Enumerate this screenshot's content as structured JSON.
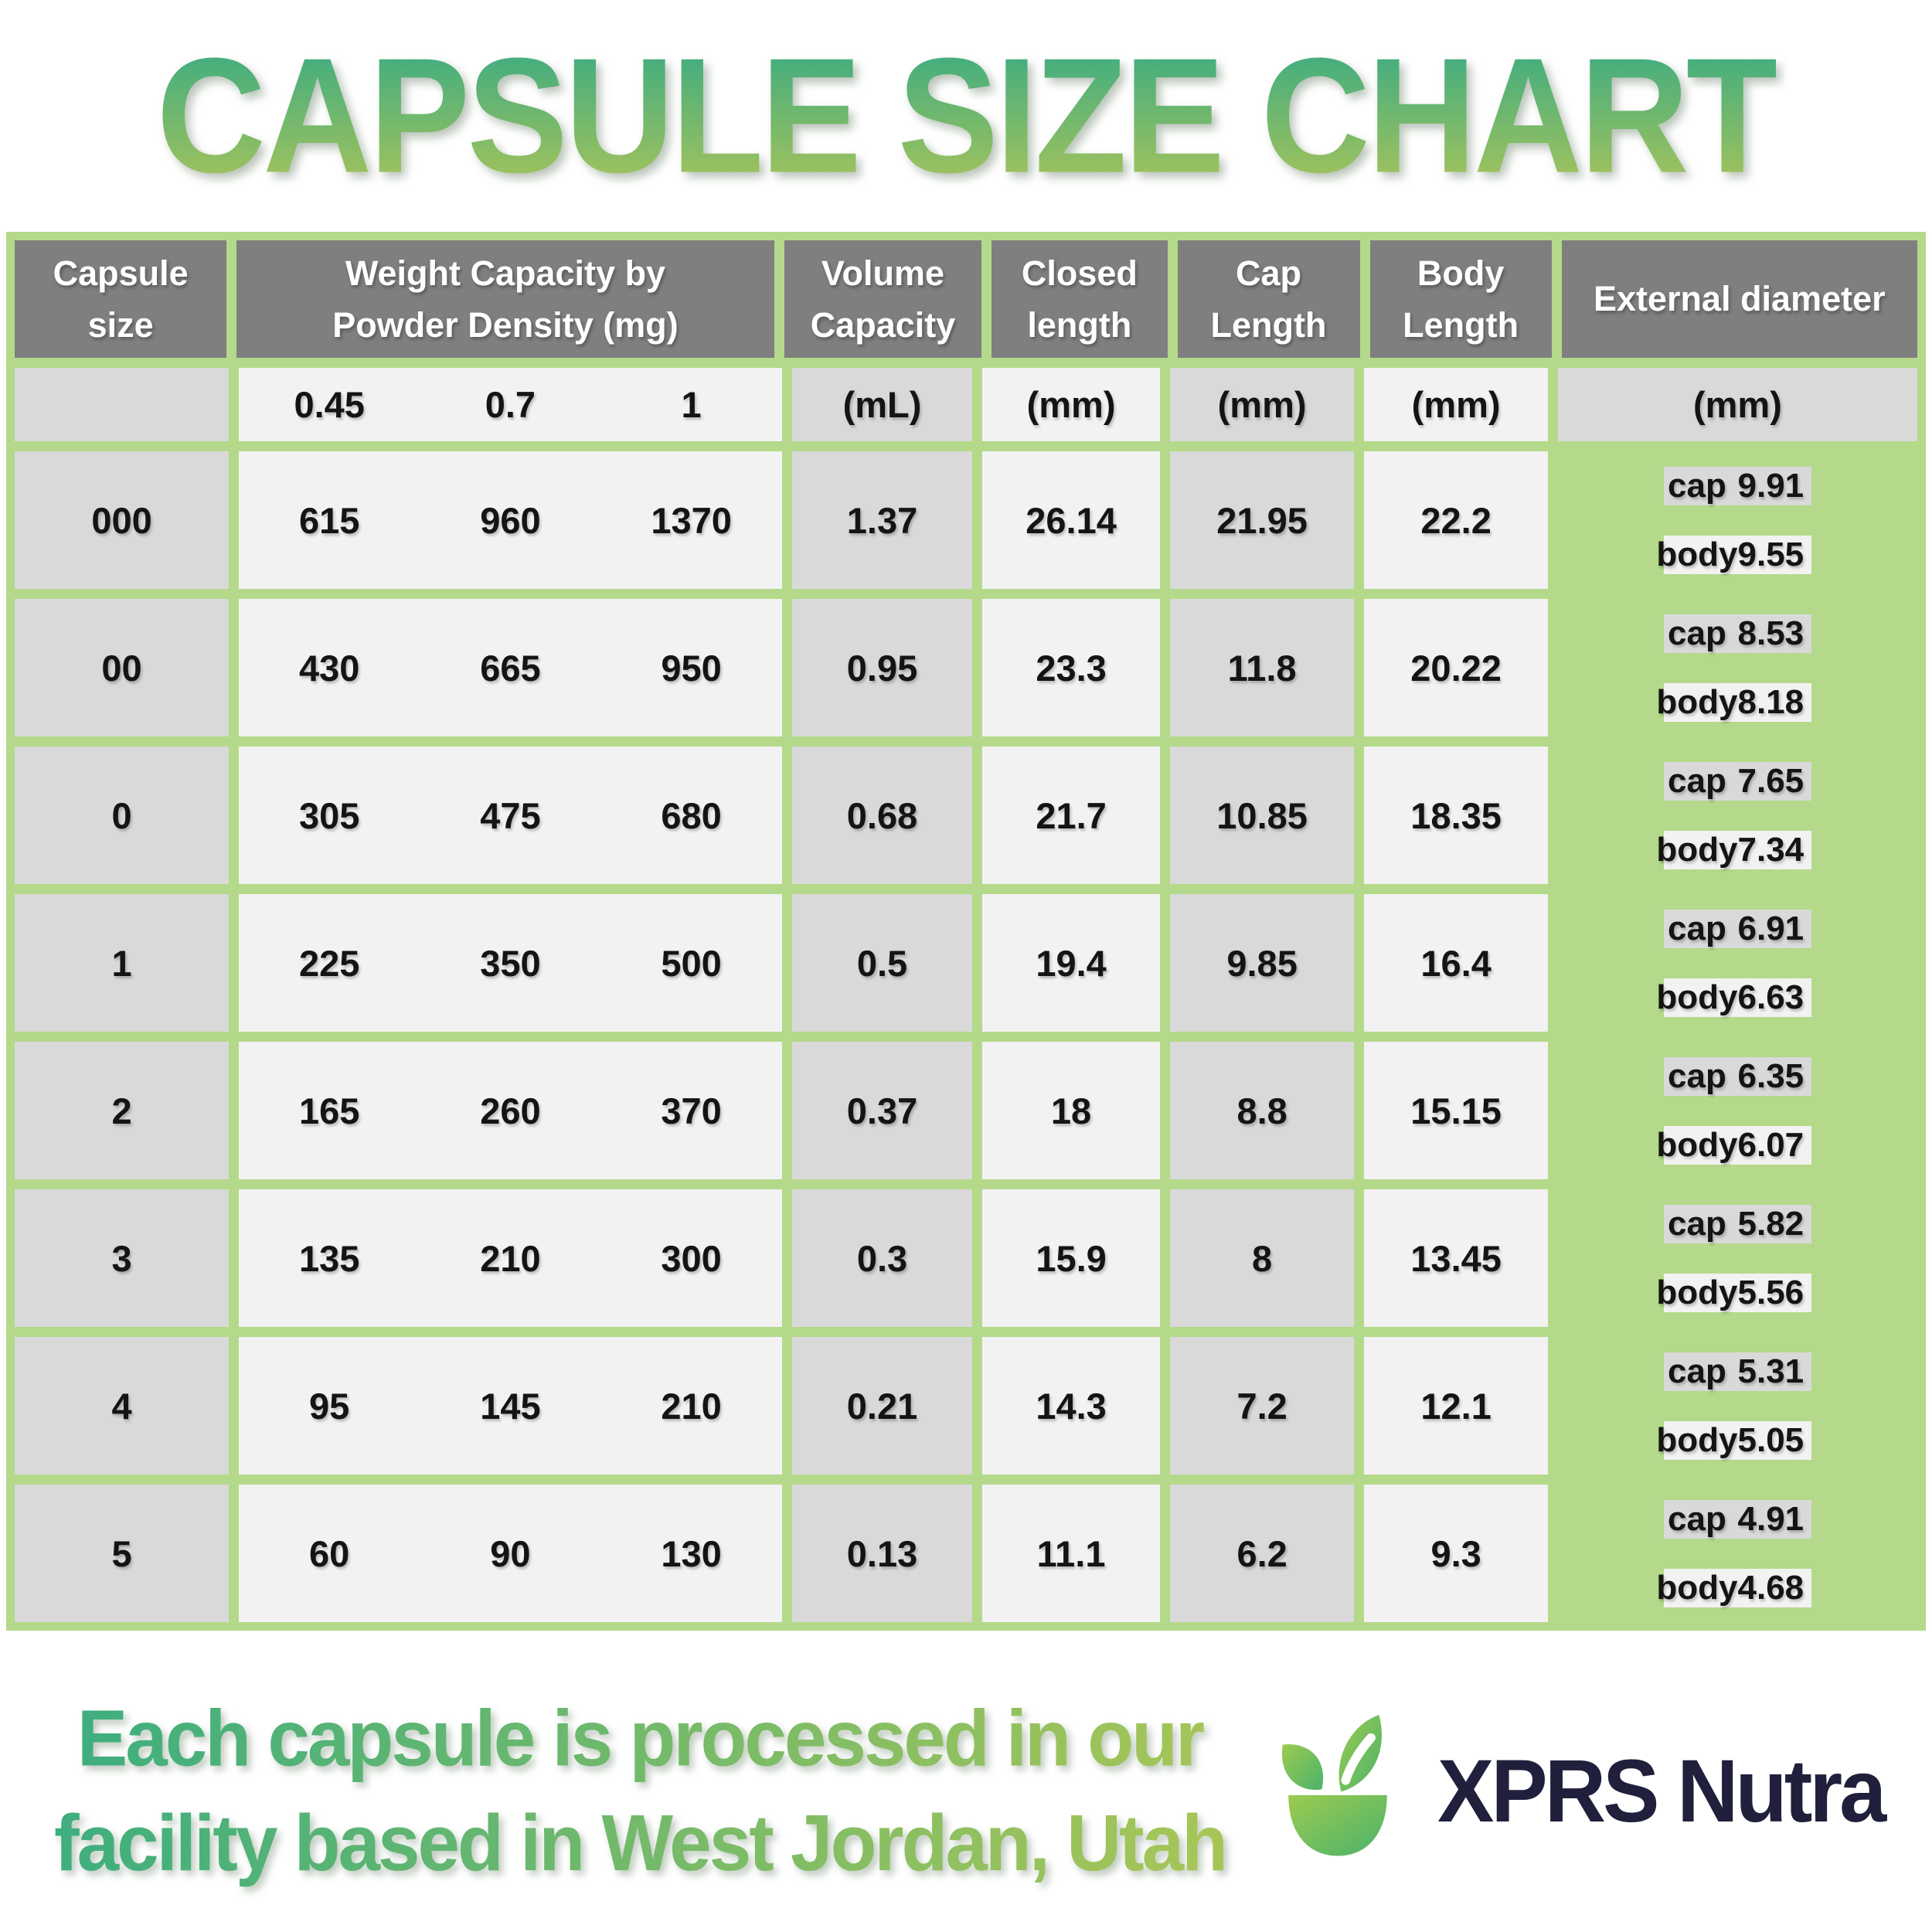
{
  "title": "CAPSULE SIZE CHART",
  "table": {
    "headers": {
      "capsule_size": "Capsule size",
      "weight_capacity": "Weight Capacity by Powder Density (mg)",
      "volume_capacity": "Volume Capacity",
      "closed_length": "Closed length",
      "cap_length": "Cap Length",
      "body_length": "Body Length",
      "external_diameter": "External diameter"
    },
    "units": {
      "densities": [
        "0.45",
        "0.7",
        "1"
      ],
      "volume": "(mL)",
      "closed": "(mm)",
      "cap": "(mm)",
      "body": "(mm)",
      "external": "(mm)"
    },
    "diameter_labels": {
      "cap": "cap",
      "body": "body"
    },
    "rows": [
      {
        "size": "000",
        "w045": "615",
        "w07": "960",
        "w1": "1370",
        "volume": "1.37",
        "closed": "26.14",
        "cap_len": "21.95",
        "body_len": "22.2",
        "cap_dia": "9.91",
        "body_dia": "9.55"
      },
      {
        "size": "00",
        "w045": "430",
        "w07": "665",
        "w1": "950",
        "volume": "0.95",
        "closed": "23.3",
        "cap_len": "11.8",
        "body_len": "20.22",
        "cap_dia": "8.53",
        "body_dia": "8.18"
      },
      {
        "size": "0",
        "w045": "305",
        "w07": "475",
        "w1": "680",
        "volume": "0.68",
        "closed": "21.7",
        "cap_len": "10.85",
        "body_len": "18.35",
        "cap_dia": "7.65",
        "body_dia": "7.34"
      },
      {
        "size": "1",
        "w045": "225",
        "w07": "350",
        "w1": "500",
        "volume": "0.5",
        "closed": "19.4",
        "cap_len": "9.85",
        "body_len": "16.4",
        "cap_dia": "6.91",
        "body_dia": "6.63"
      },
      {
        "size": "2",
        "w045": "165",
        "w07": "260",
        "w1": "370",
        "volume": "0.37",
        "closed": "18",
        "cap_len": "8.8",
        "body_len": "15.15",
        "cap_dia": "6.35",
        "body_dia": "6.07"
      },
      {
        "size": "3",
        "w045": "135",
        "w07": "210",
        "w1": "300",
        "volume": "0.3",
        "closed": "15.9",
        "cap_len": "8",
        "body_len": "13.45",
        "cap_dia": "5.82",
        "body_dia": "5.56"
      },
      {
        "size": "4",
        "w045": "95",
        "w07": "145",
        "w1": "210",
        "volume": "0.21",
        "closed": "14.3",
        "cap_len": "7.2",
        "body_len": "12.1",
        "cap_dia": "5.31",
        "body_dia": "5.05"
      },
      {
        "size": "5",
        "w045": "60",
        "w07": "90",
        "w1": "130",
        "volume": "0.13",
        "closed": "11.1",
        "cap_len": "6.2",
        "body_len": "9.3",
        "cap_dia": "4.91",
        "body_dia": "4.68"
      }
    ]
  },
  "footer": {
    "tagline_line1": "Each capsule is processed in our",
    "tagline_line2": "facility based in West Jordan, Utah",
    "brand": "XPRS Nutra"
  },
  "colors": {
    "border_green": "#b4d98a",
    "header_gray": "#7f7f7f",
    "cell_gray": "#d9d9d9",
    "cell_light": "#f2f2f2",
    "title_gradient_top": "#3eac81",
    "title_gradient_bottom": "#a8c45a",
    "tagline_gradient_left": "#3fae7e",
    "tagline_gradient_right": "#a6c557",
    "brand_navy": "#20203c",
    "logo_green_light": "#9ccb50",
    "logo_green_dark": "#4bb26b"
  },
  "chart_data": {
    "type": "table",
    "title": "CAPSULE SIZE CHART",
    "columns": [
      "Capsule size",
      "Weight Capacity at Powder Density 0.45 (mg)",
      "Weight Capacity at Powder Density 0.7 (mg)",
      "Weight Capacity at Powder Density 1 (mg)",
      "Volume Capacity (mL)",
      "Closed length (mm)",
      "Cap Length (mm)",
      "Body Length (mm)",
      "External diameter cap (mm)",
      "External diameter body (mm)"
    ],
    "rows": [
      [
        "000",
        615,
        960,
        1370,
        1.37,
        26.14,
        21.95,
        22.2,
        9.91,
        9.55
      ],
      [
        "00",
        430,
        665,
        950,
        0.95,
        23.3,
        11.8,
        20.22,
        8.53,
        8.18
      ],
      [
        "0",
        305,
        475,
        680,
        0.68,
        21.7,
        10.85,
        18.35,
        7.65,
        7.34
      ],
      [
        "1",
        225,
        350,
        500,
        0.5,
        19.4,
        9.85,
        16.4,
        6.91,
        6.63
      ],
      [
        "2",
        165,
        260,
        370,
        0.37,
        18,
        8.8,
        15.15,
        6.35,
        6.07
      ],
      [
        "3",
        135,
        210,
        300,
        0.3,
        15.9,
        8,
        13.45,
        5.82,
        5.56
      ],
      [
        "4",
        95,
        145,
        210,
        0.21,
        14.3,
        7.2,
        12.1,
        5.31,
        5.05
      ],
      [
        "5",
        60,
        90,
        130,
        0.13,
        11.1,
        6.2,
        9.3,
        4.91,
        4.68
      ]
    ]
  }
}
